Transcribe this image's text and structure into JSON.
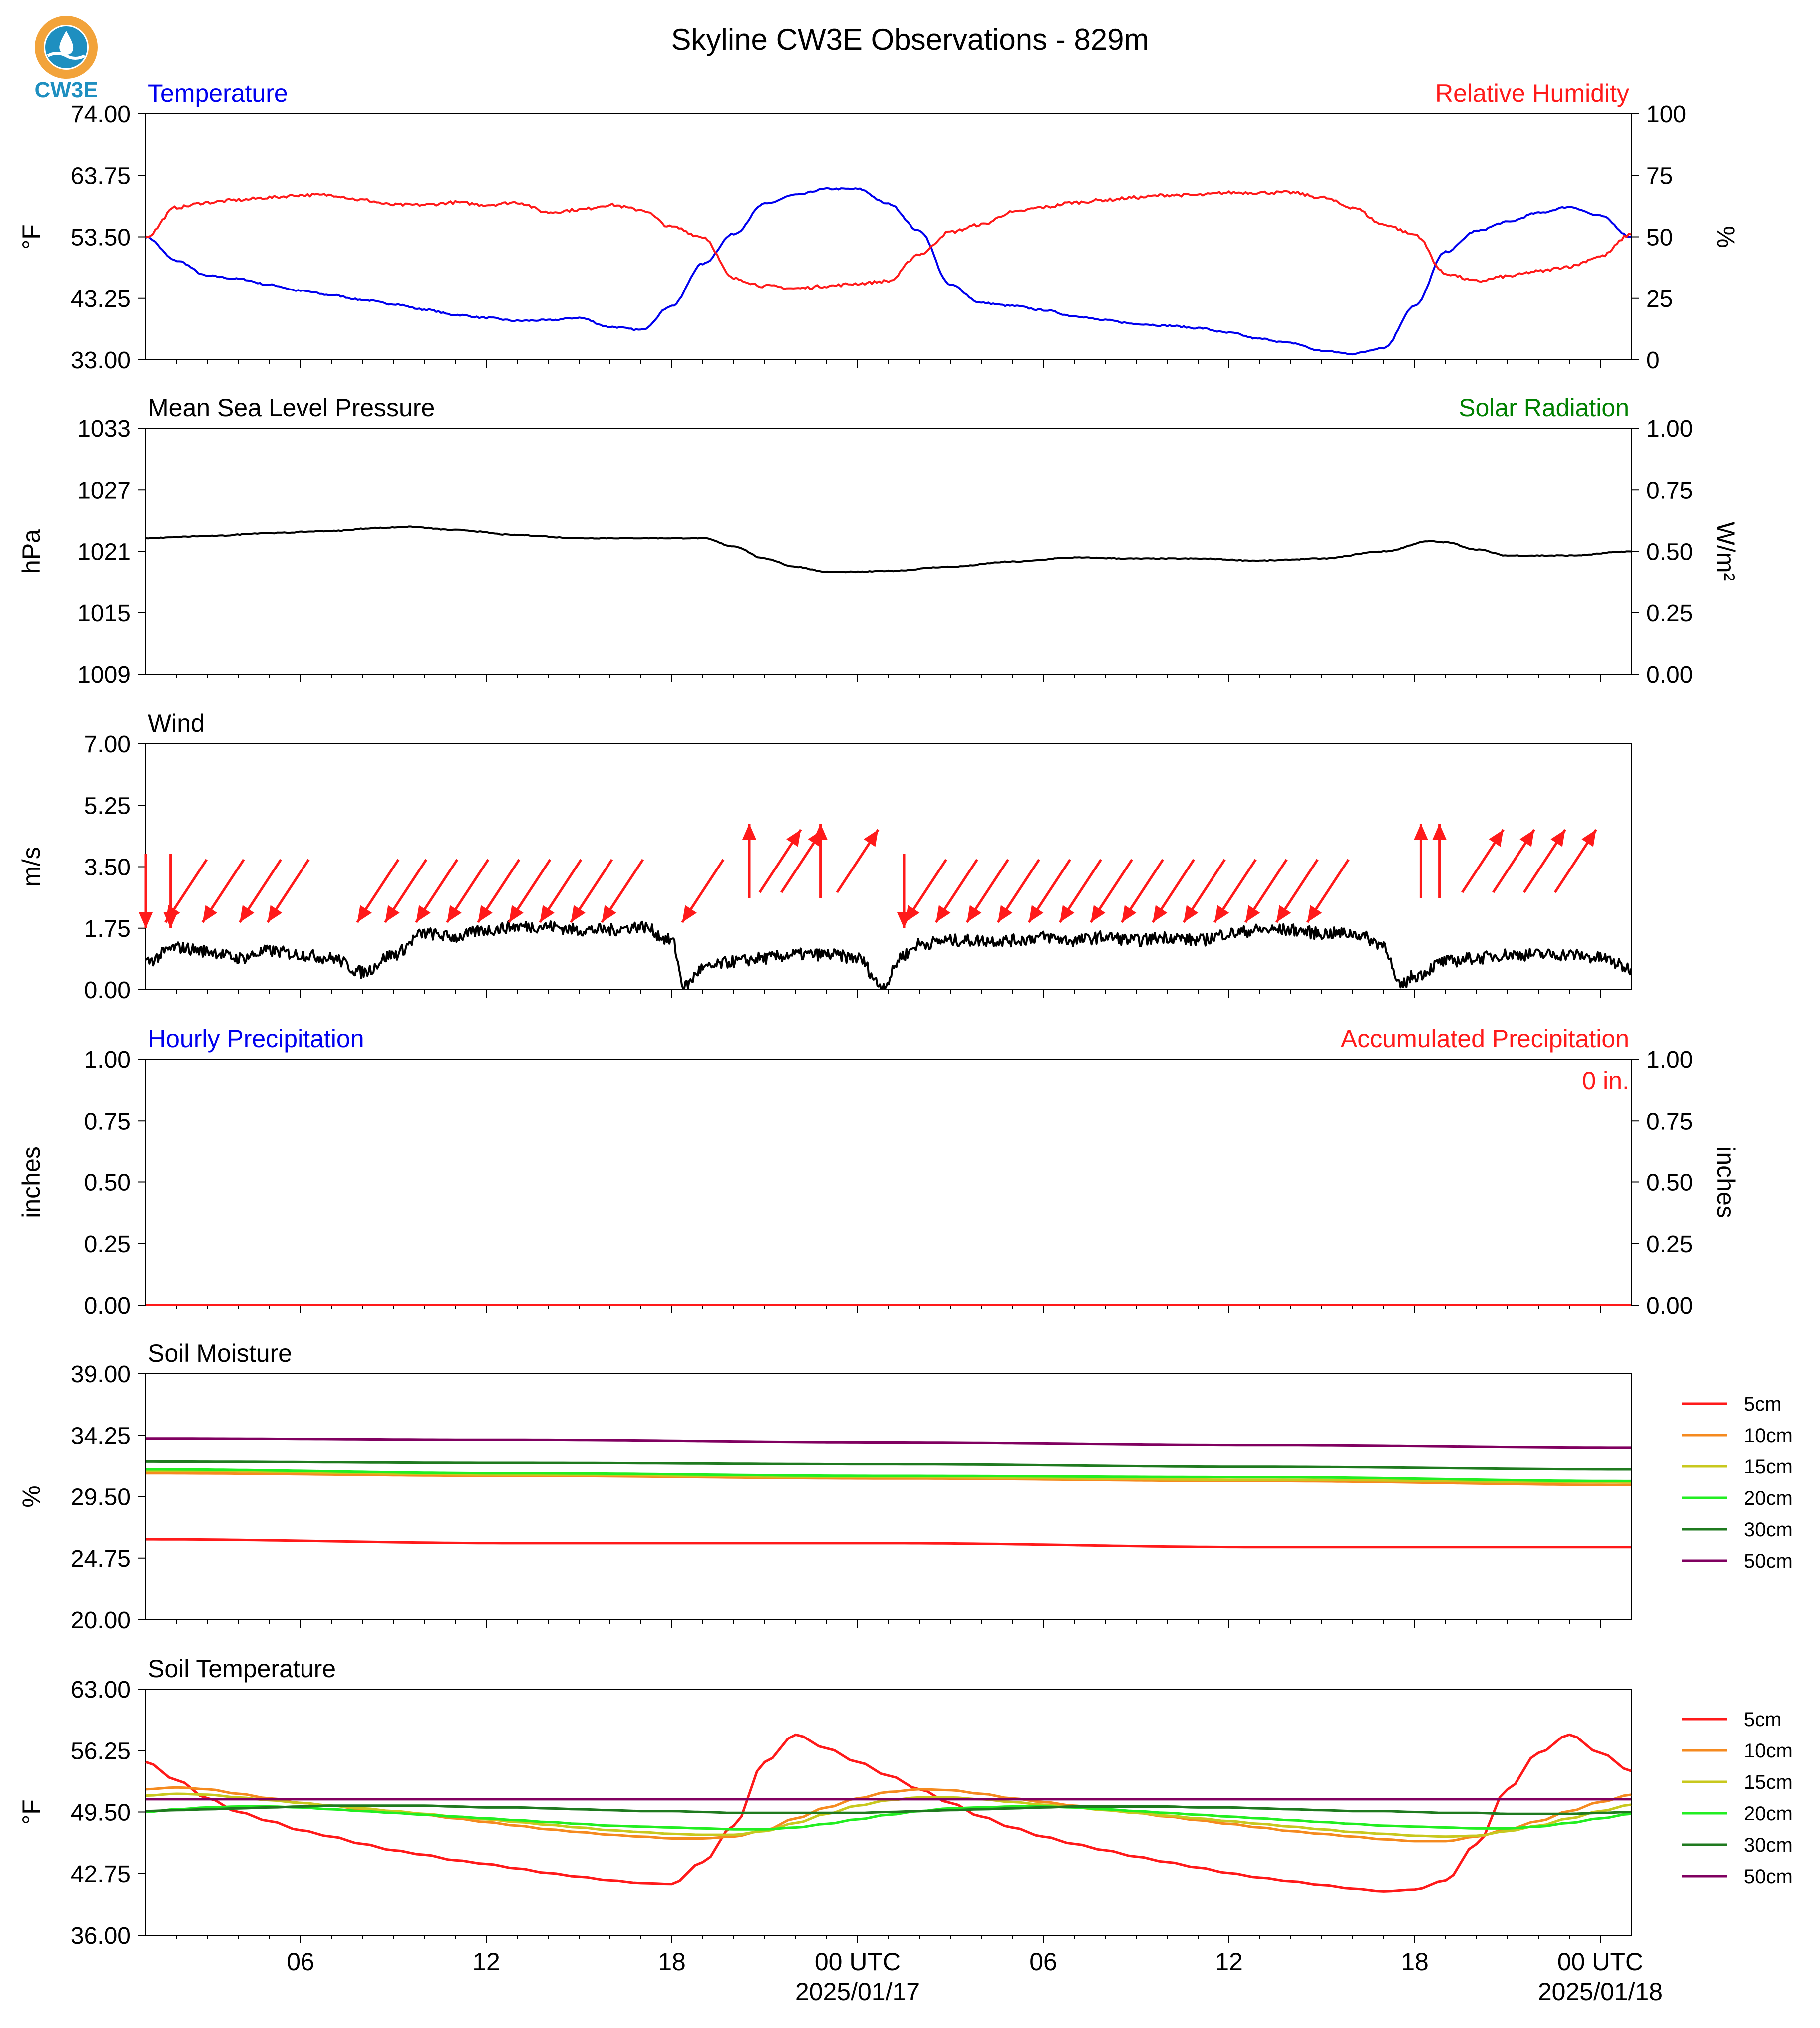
{
  "title": "Skyline CW3E Observations - 829m",
  "logo": {
    "text": "CW3E",
    "colors": {
      "ring": "#F2A33A",
      "drop": "#1E8FC0",
      "waves": "#1E8FC0"
    }
  },
  "colors": {
    "blue": "#0000EE",
    "red": "#FF1A1A",
    "green": "#008000",
    "black": "#000000"
  },
  "x_axis": {
    "hour_range": [
      0,
      48
    ],
    "ticks": [
      {
        "hour": 5,
        "label": "06"
      },
      {
        "hour": 11,
        "label": "12"
      },
      {
        "hour": 17,
        "label": "18"
      },
      {
        "hour": 23,
        "label": "00 UTC",
        "date": "2025/01/17"
      },
      {
        "hour": 29,
        "label": "06"
      },
      {
        "hour": 35,
        "label": "12"
      },
      {
        "hour": 41,
        "label": "18"
      },
      {
        "hour": 47,
        "label": "00 UTC",
        "date": "2025/01/18"
      }
    ]
  },
  "chart_data": [
    {
      "type": "line",
      "panel": "temperature-humidity",
      "left_title": "Temperature",
      "right_title": "Relative Humidity",
      "ylabel": "°F",
      "y2label": "%",
      "ylim": [
        33,
        74
      ],
      "y2lim": [
        0,
        100
      ],
      "yticks": [
        "33.00",
        "43.25",
        "53.50",
        "63.75",
        "74.00"
      ],
      "y2ticks": [
        "0",
        "25",
        "50",
        "75",
        "100"
      ],
      "x_hours": [
        0,
        1,
        2,
        3,
        4,
        5,
        6,
        7,
        8,
        9,
        10,
        11,
        12,
        13,
        14,
        15,
        16,
        17,
        18,
        19,
        20,
        21,
        22,
        23,
        24,
        25,
        26,
        27,
        28,
        29,
        30,
        31,
        32,
        33,
        34,
        35,
        36,
        37,
        38,
        39,
        40,
        41,
        42,
        43,
        44,
        45,
        46,
        47,
        48
      ],
      "series": [
        {
          "name": "Temperature",
          "color": "#0000EE",
          "axis": "left",
          "values": [
            53.5,
            49.5,
            47,
            46.5,
            45.5,
            44.5,
            43.8,
            43,
            42.3,
            41.4,
            40.5,
            40,
            39.5,
            39.6,
            40,
            38.5,
            38,
            42,
            49,
            54,
            59,
            60.5,
            61.5,
            61.5,
            59,
            54.5,
            45.5,
            42.5,
            42,
            41.3,
            40.3,
            39.6,
            39,
            38.7,
            38.3,
            37.5,
            36.5,
            35.8,
            34.5,
            34,
            35,
            42,
            51,
            54.5,
            56,
            57.5,
            58.5,
            57,
            53.5
          ]
        },
        {
          "name": "Relative Humidity",
          "color": "#FF1A1A",
          "axis": "right",
          "values": [
            50,
            62,
            64,
            65,
            66,
            67,
            67,
            65,
            63,
            63,
            64,
            63,
            64,
            60,
            61,
            63,
            61,
            54,
            50,
            33,
            30,
            29,
            30,
            31,
            32,
            43,
            52,
            55,
            60,
            62,
            64,
            65,
            66,
            67,
            67,
            68,
            68,
            68,
            66,
            62,
            55,
            51,
            35,
            32,
            34,
            36,
            38,
            42,
            51
          ]
        }
      ]
    },
    {
      "type": "line",
      "panel": "pressure-solar",
      "left_title": "Mean Sea Level Pressure",
      "right_title": "Solar Radiation",
      "ylabel": "hPa",
      "y2label": "W/m²",
      "ylim": [
        1009,
        1033
      ],
      "y2lim": [
        0,
        1
      ],
      "yticks": [
        "1009",
        "1015",
        "1021",
        "1027",
        "1033"
      ],
      "y2ticks": [
        "0.00",
        "0.25",
        "0.50",
        "0.75",
        "1.00"
      ],
      "x_hours": [
        0,
        2,
        4,
        6,
        7.5,
        8.5,
        10,
        12,
        14,
        16,
        18,
        19,
        20,
        21,
        22,
        23,
        24,
        26,
        28,
        30,
        32,
        34,
        36,
        38,
        40,
        41.5,
        42,
        43,
        44,
        46,
        48
      ],
      "series": [
        {
          "name": "Mean Sea Level Pressure",
          "color": "#000000",
          "axis": "left",
          "values": [
            1022.3,
            1022.5,
            1022.8,
            1023,
            1023.3,
            1023.4,
            1023.1,
            1022.6,
            1022.3,
            1022.3,
            1022.3,
            1021.5,
            1020.3,
            1019.5,
            1019,
            1019,
            1019.1,
            1019.5,
            1020,
            1020.4,
            1020.3,
            1020.3,
            1020.1,
            1020.3,
            1021,
            1022,
            1021.9,
            1021.2,
            1020.6,
            1020.6,
            1021
          ]
        }
      ]
    },
    {
      "type": "line",
      "panel": "wind",
      "left_title": "Wind",
      "ylabel": "m/s",
      "ylim": [
        0,
        7
      ],
      "yticks": [
        "0.00",
        "1.75",
        "3.50",
        "5.25",
        "7.00"
      ],
      "x_hours": [
        0,
        1,
        2,
        3,
        4,
        5,
        6,
        7,
        8,
        9,
        10,
        11,
        12,
        13,
        14,
        15,
        16,
        17,
        17.4,
        18,
        19,
        20,
        21,
        22,
        23,
        23.8,
        24.5,
        25,
        26,
        27,
        28,
        29,
        30,
        31,
        32,
        33,
        34,
        35,
        36,
        37,
        38,
        39,
        40,
        40.5,
        41,
        42,
        43,
        44,
        45,
        46,
        47,
        48
      ],
      "series": [
        {
          "name": "Wind speed",
          "color": "#000000",
          "axis": "left",
          "values": [
            0.8,
            1.2,
            1.1,
            0.9,
            1.1,
            1,
            0.9,
            0.5,
            1,
            1.6,
            1.5,
            1.7,
            1.8,
            1.8,
            1.7,
            1.7,
            1.8,
            1.4,
            0.1,
            0.6,
            0.8,
            0.9,
            1,
            1,
            0.9,
            0.1,
            1,
            1.3,
            1.4,
            1.4,
            1.4,
            1.5,
            1.4,
            1.5,
            1.4,
            1.5,
            1.4,
            1.6,
            1.7,
            1.7,
            1.6,
            1.6,
            1.3,
            0.1,
            0.4,
            0.8,
            0.9,
            1,
            1,
            1,
            0.9,
            0.6
          ]
        }
      ],
      "wind_barbs": {
        "direction_arrows_hours": [
          0,
          0.8,
          1.3,
          2.5,
          3.7,
          4.6,
          7.5,
          8.4,
          9.4,
          10.4,
          11.4,
          12.4,
          13.4,
          14.4,
          15.4,
          18,
          19.5,
          20.5,
          21.2,
          21.8,
          23,
          24.5,
          25.2,
          26.2,
          27.2,
          28.2,
          29.2,
          30.2,
          31.2,
          32.2,
          33.2,
          34.2,
          35.2,
          36.2,
          37.2,
          38.2,
          41.2,
          41.8,
          43.2,
          44.2,
          45.2,
          46.2
        ],
        "towards": [
          "S",
          "S",
          "SW",
          "SW",
          "SW",
          "SW",
          "SW",
          "SW",
          "SW",
          "SW",
          "SW",
          "SW",
          "SW",
          "SW",
          "SW",
          "SW",
          "N",
          "NE",
          "NE",
          "N",
          "NE",
          "S",
          "SW",
          "SW",
          "SW",
          "SW",
          "SW",
          "SW",
          "SW",
          "SW",
          "SW",
          "SW",
          "SW",
          "SW",
          "SW",
          "SW",
          "N",
          "N",
          "NE",
          "NE",
          "NE",
          "NE"
        ]
      }
    },
    {
      "type": "line",
      "panel": "precipitation",
      "left_title": "Hourly Precipitation",
      "right_title": "Accumulated Precipitation",
      "ylabel": "inches",
      "y2label": "inches",
      "ylim": [
        0,
        1
      ],
      "y2lim": [
        0,
        1
      ],
      "yticks": [
        "0.00",
        "0.25",
        "0.50",
        "0.75",
        "1.00"
      ],
      "y2ticks": [
        "0.00",
        "0.25",
        "0.50",
        "0.75",
        "1.00"
      ],
      "accumulated_label": "0 in.",
      "x_hours": [
        0,
        48
      ],
      "series": [
        {
          "name": "Hourly Precipitation",
          "color": "#0000EE",
          "axis": "left",
          "values": [
            0,
            0
          ]
        },
        {
          "name": "Accumulated Precipitation",
          "color": "#FF1A1A",
          "axis": "right",
          "values": [
            0,
            0
          ]
        }
      ]
    },
    {
      "type": "line",
      "panel": "soil-moisture",
      "left_title": "Soil Moisture",
      "ylabel": "%",
      "ylim": [
        20,
        39
      ],
      "yticks": [
        "20.00",
        "24.75",
        "29.50",
        "34.25",
        "39.00"
      ],
      "x_hours": [
        0,
        12,
        24,
        36,
        48
      ],
      "series": [
        {
          "name": "5cm",
          "color": "#FF1A1A",
          "values": [
            26.2,
            25.9,
            25.9,
            25.6,
            25.6
          ]
        },
        {
          "name": "10cm",
          "color": "#F58A1F",
          "values": [
            31.3,
            31.1,
            30.9,
            30.7,
            30.4
          ]
        },
        {
          "name": "15cm",
          "color": "#C8C81E",
          "values": [
            31.5,
            31.2,
            31.0,
            30.8,
            30.6
          ]
        },
        {
          "name": "20cm",
          "color": "#22EE22",
          "values": [
            31.6,
            31.3,
            31.1,
            31.0,
            30.7
          ]
        },
        {
          "name": "30cm",
          "color": "#1F7A1F",
          "values": [
            32.2,
            32.1,
            32.0,
            31.8,
            31.6
          ]
        },
        {
          "name": "50cm",
          "color": "#800060",
          "values": [
            34.0,
            33.9,
            33.7,
            33.5,
            33.3
          ]
        }
      ]
    },
    {
      "type": "line",
      "panel": "soil-temperature",
      "left_title": "Soil Temperature",
      "ylabel": "°F",
      "ylim": [
        36,
        63
      ],
      "yticks": [
        "36.00",
        "42.75",
        "49.50",
        "56.25",
        "63.00"
      ],
      "x_hours": [
        0,
        1,
        2,
        3,
        4,
        5,
        6,
        7,
        8,
        9,
        10,
        11,
        12,
        13,
        14,
        15,
        16,
        17,
        18,
        19,
        20,
        21,
        22,
        23,
        24,
        25,
        26,
        27,
        28,
        29,
        30,
        31,
        32,
        33,
        34,
        35,
        36,
        37,
        38,
        39,
        40,
        41,
        42,
        43,
        44,
        45,
        46,
        47,
        48
      ],
      "series": [
        {
          "name": "5cm",
          "color": "#FF1A1A",
          "values": [
            55,
            53,
            51,
            49.5,
            48.5,
            47.5,
            46.8,
            46,
            45.3,
            44.8,
            44.2,
            43.8,
            43.3,
            42.8,
            42.4,
            42,
            41.7,
            41.6,
            44,
            48,
            55,
            58,
            56.5,
            55,
            53.5,
            52,
            50.5,
            49,
            47.8,
            46.8,
            46,
            45.3,
            44.6,
            44,
            43.4,
            42.8,
            42.3,
            41.9,
            41.5,
            41.1,
            40.8,
            41,
            42,
            46,
            52,
            56,
            58,
            56,
            54
          ]
        },
        {
          "name": "10cm",
          "color": "#F58A1F",
          "values": [
            52,
            52.2,
            52,
            51.5,
            51,
            50.5,
            50.2,
            49.8,
            49.5,
            49.2,
            48.8,
            48.4,
            48,
            47.6,
            47.3,
            47,
            46.8,
            46.6,
            46.6,
            46.8,
            47.5,
            48.8,
            50,
            51,
            51.7,
            52,
            51.9,
            51.5,
            51,
            50.6,
            50.2,
            49.8,
            49.4,
            49,
            48.6,
            48.2,
            47.8,
            47.4,
            47.1,
            46.8,
            46.5,
            46.3,
            46.3,
            46.8,
            47.6,
            48.5,
            49.6,
            50.6,
            51.4
          ]
        },
        {
          "name": "15cm",
          "color": "#C8C81E",
          "values": [
            51.3,
            51.5,
            51.4,
            51.1,
            50.8,
            50.5,
            50.2,
            49.9,
            49.6,
            49.3,
            49,
            48.7,
            48.4,
            48.1,
            47.8,
            47.5,
            47.3,
            47.1,
            47,
            47,
            47.4,
            48.3,
            49.3,
            50.2,
            50.8,
            51.1,
            51.1,
            50.9,
            50.6,
            50.3,
            50,
            49.7,
            49.4,
            49.1,
            48.8,
            48.5,
            48.2,
            47.9,
            47.6,
            47.3,
            47.1,
            46.9,
            46.8,
            46.9,
            47.4,
            48,
            48.8,
            49.6,
            50.3
          ]
        },
        {
          "name": "20cm",
          "color": "#22EE22",
          "values": [
            49.5,
            49.8,
            50,
            50.1,
            50.1,
            50,
            49.8,
            49.6,
            49.4,
            49.2,
            49,
            48.8,
            48.6,
            48.4,
            48.2,
            48,
            47.9,
            47.8,
            47.7,
            47.6,
            47.6,
            47.8,
            48.2,
            48.7,
            49.2,
            49.6,
            49.9,
            50,
            50.1,
            50.1,
            50,
            49.8,
            49.6,
            49.4,
            49.2,
            49,
            48.8,
            48.6,
            48.4,
            48.2,
            48,
            47.9,
            47.8,
            47.7,
            47.7,
            47.9,
            48.3,
            48.8,
            49.3
          ]
        },
        {
          "name": "30cm",
          "color": "#1F7A1F",
          "values": [
            49.6,
            49.7,
            49.8,
            49.9,
            50,
            50.1,
            50.2,
            50.2,
            50.2,
            50.2,
            50.1,
            50,
            50,
            49.9,
            49.8,
            49.7,
            49.6,
            49.6,
            49.5,
            49.4,
            49.4,
            49.4,
            49.4,
            49.4,
            49.5,
            49.6,
            49.7,
            49.8,
            49.9,
            50,
            50.1,
            50.1,
            50.1,
            50.1,
            50,
            50,
            49.9,
            49.8,
            49.7,
            49.6,
            49.6,
            49.5,
            49.4,
            49.4,
            49.3,
            49.3,
            49.3,
            49.4,
            49.5
          ]
        },
        {
          "name": "50cm",
          "color": "#800060",
          "values": [
            50.9,
            50.9,
            50.9,
            50.9,
            50.9,
            50.9,
            50.9,
            50.9,
            50.9,
            50.9,
            50.9,
            50.9,
            50.9,
            50.9,
            50.9,
            50.9,
            50.9,
            50.9,
            50.9,
            50.9,
            50.9,
            50.9,
            50.9,
            50.9,
            50.9,
            50.9,
            50.9,
            50.9,
            50.9,
            50.9,
            50.9,
            50.9,
            50.9,
            50.9,
            50.9,
            50.9,
            50.9,
            50.9,
            50.9,
            50.9,
            50.9,
            50.9,
            50.9,
            50.9,
            50.9,
            50.9,
            50.9,
            50.9,
            50.9
          ]
        }
      ]
    }
  ]
}
